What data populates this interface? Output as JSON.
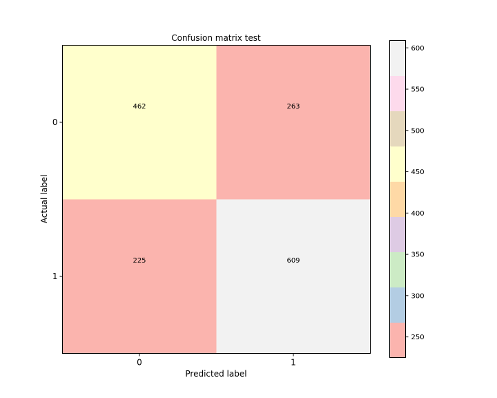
{
  "chart_data": {
    "type": "heatmap",
    "title": "Confusion matrix test",
    "xlabel": "Predicted label",
    "ylabel": "Actual label",
    "x_categories": [
      "0",
      "1"
    ],
    "y_categories": [
      "0",
      "1"
    ],
    "matrix": [
      [
        462,
        263
      ],
      [
        225,
        609
      ]
    ],
    "colormap": "Pastel1",
    "colorbar": {
      "range": [
        225,
        609
      ],
      "ticks": [
        250,
        300,
        350,
        400,
        450,
        500,
        550,
        600
      ],
      "tick_labels": [
        "250",
        "300",
        "350",
        "400",
        "450",
        "500",
        "550",
        "600"
      ],
      "colors": [
        "#fbb4ae",
        "#b3cde3",
        "#ccebc5",
        "#decbe4",
        "#fed9a6",
        "#ffffcc",
        "#e5d8bd",
        "#fddaec",
        "#f2f2f2"
      ]
    },
    "grid": false
  }
}
